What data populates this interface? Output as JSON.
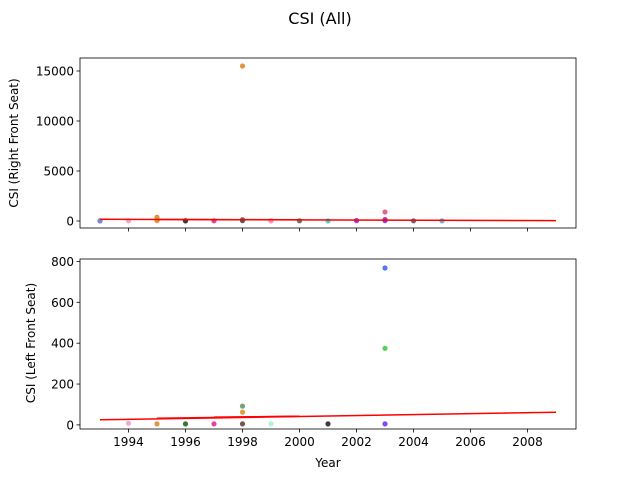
{
  "figure": {
    "title": "CSI (All)",
    "xlabel": "Year"
  },
  "chart_data": [
    {
      "type": "scatter",
      "ylabel": "CSI (Right Front Seat)",
      "xlim": [
        1992.3,
        2009.7
      ],
      "ylim": [
        -700,
        16300
      ],
      "xticks": [
        1994,
        1996,
        1998,
        2000,
        2002,
        2004,
        2006,
        2008
      ],
      "xtick_labels_visible": false,
      "yticks": [
        0,
        5000,
        10000,
        15000
      ],
      "ytick_labels": [
        "0",
        "5000",
        "10000",
        "15000"
      ],
      "points": [
        {
          "x": 1993,
          "y": 5,
          "color": "#4466dd"
        },
        {
          "x": 1993,
          "y": 20,
          "color": "#7a8fd0"
        },
        {
          "x": 1994,
          "y": 10,
          "color": "#f0a0c8"
        },
        {
          "x": 1995,
          "y": 380,
          "color": "#e08a20"
        },
        {
          "x": 1995,
          "y": 150,
          "color": "#d0a040"
        },
        {
          "x": 1995,
          "y": 40,
          "color": "#e09030"
        },
        {
          "x": 1996,
          "y": 30,
          "color": "#226622"
        },
        {
          "x": 1996,
          "y": 10,
          "color": "#333333"
        },
        {
          "x": 1997,
          "y": 20,
          "color": "#dd3399"
        },
        {
          "x": 1998,
          "y": 15500,
          "color": "#e08a30"
        },
        {
          "x": 1998,
          "y": 150,
          "color": "#888888"
        },
        {
          "x": 1998,
          "y": 40,
          "color": "#445544"
        },
        {
          "x": 1999,
          "y": 10,
          "color": "#ff88aa"
        },
        {
          "x": 2000,
          "y": 20,
          "color": "#556655"
        },
        {
          "x": 2001,
          "y": 5,
          "color": "#33cccc"
        },
        {
          "x": 2002,
          "y": 40,
          "color": "#9922cc"
        },
        {
          "x": 2003,
          "y": 900,
          "color": "#dd5588"
        },
        {
          "x": 2003,
          "y": 150,
          "color": "#cc3377"
        },
        {
          "x": 2003,
          "y": 30,
          "color": "#7733ee"
        },
        {
          "x": 2004,
          "y": 20,
          "color": "#555577"
        },
        {
          "x": 2005,
          "y": 10,
          "color": "#55aadd"
        }
      ],
      "trend_segments": [
        {
          "x": [
            1993,
            2009
          ],
          "y": [
            170,
            40
          ]
        },
        {
          "x": [
            1995,
            2000
          ],
          "y": [
            150,
            120
          ]
        },
        {
          "x": [
            1998,
            2000
          ],
          "y": [
            140,
            120
          ]
        }
      ],
      "trend_color": "#ff0000"
    },
    {
      "type": "scatter",
      "ylabel": "CSI (Left Front Seat)",
      "xlim": [
        1992.3,
        2009.7
      ],
      "ylim": [
        -20,
        812
      ],
      "xticks": [
        1994,
        1996,
        1998,
        2000,
        2002,
        2004,
        2006,
        2008
      ],
      "xtick_labels": [
        "1994",
        "1996",
        "1998",
        "2000",
        "2002",
        "2004",
        "2006",
        "2008"
      ],
      "yticks": [
        0,
        200,
        400,
        600,
        800
      ],
      "ytick_labels": [
        "0",
        "200",
        "400",
        "600",
        "800"
      ],
      "points": [
        {
          "x": 1994,
          "y": 8,
          "color": "#f0a0d0"
        },
        {
          "x": 1995,
          "y": 5,
          "color": "#e08a30"
        },
        {
          "x": 1996,
          "y": 5,
          "color": "#226622"
        },
        {
          "x": 1997,
          "y": 5,
          "color": "#dd3399"
        },
        {
          "x": 1998,
          "y": 92,
          "color": "#669966"
        },
        {
          "x": 1998,
          "y": 62,
          "color": "#e09030"
        },
        {
          "x": 1998,
          "y": 5,
          "color": "#664444"
        },
        {
          "x": 1999,
          "y": 5,
          "color": "#aaeedd"
        },
        {
          "x": 2001,
          "y": 5,
          "color": "#332222"
        },
        {
          "x": 2003,
          "y": 768,
          "color": "#4466ee"
        },
        {
          "x": 2003,
          "y": 375,
          "color": "#44cc44"
        },
        {
          "x": 2003,
          "y": 5,
          "color": "#7733ee"
        }
      ],
      "trend_segments": [
        {
          "x": [
            1993,
            2009
          ],
          "y": [
            25,
            62
          ]
        },
        {
          "x": [
            1995,
            2000
          ],
          "y": [
            33,
            42
          ]
        },
        {
          "x": [
            1997,
            2000
          ],
          "y": [
            38,
            42
          ]
        }
      ],
      "trend_color": "#ff0000"
    }
  ]
}
